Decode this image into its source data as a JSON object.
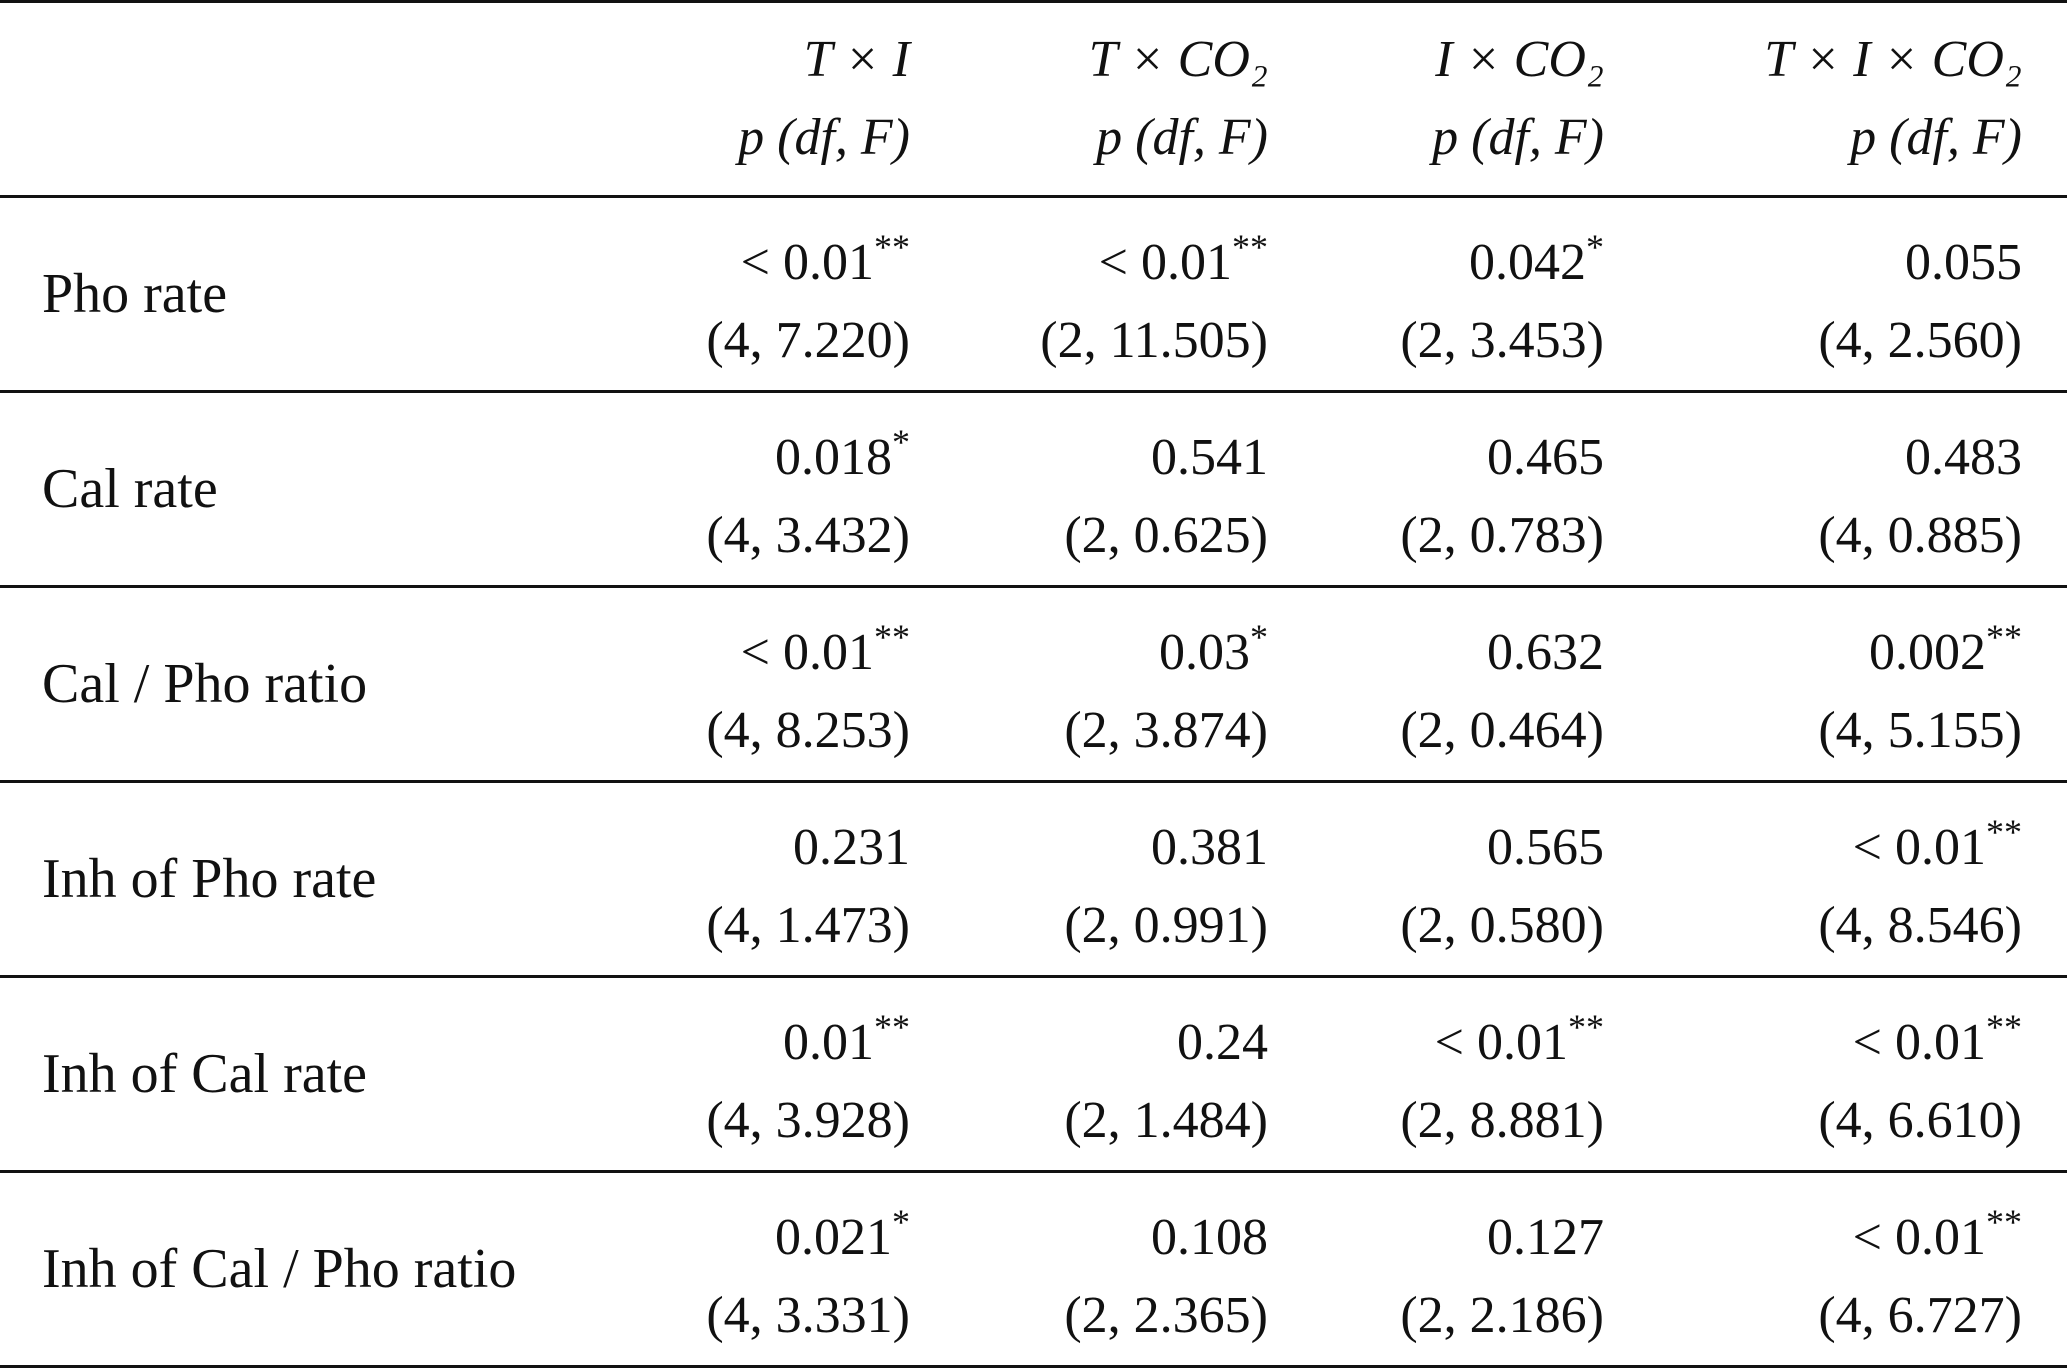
{
  "columns": [
    {
      "effect": "T × I",
      "stat": "p (df, F)"
    },
    {
      "effect": "T × CO₂",
      "stat": "p (df, F)"
    },
    {
      "effect": "I × CO₂",
      "stat": "p (df, F)"
    },
    {
      "effect": "T × I × CO₂",
      "stat": "p (df, F)"
    }
  ],
  "rows": [
    {
      "label": "Pho rate",
      "cells": [
        {
          "p": "< 0.01",
          "sig": "**",
          "stat": "(4, 7.220)"
        },
        {
          "p": "< 0.01",
          "sig": "**",
          "stat": "(2, 11.505)"
        },
        {
          "p": "0.042",
          "sig": "*",
          "stat": "(2, 3.453)"
        },
        {
          "p": "0.055",
          "sig": "",
          "stat": "(4, 2.560)"
        }
      ]
    },
    {
      "label": "Cal rate",
      "cells": [
        {
          "p": "0.018",
          "sig": "*",
          "stat": "(4, 3.432)"
        },
        {
          "p": "0.541",
          "sig": "",
          "stat": "(2, 0.625)"
        },
        {
          "p": "0.465",
          "sig": "",
          "stat": "(2, 0.783)"
        },
        {
          "p": "0.483",
          "sig": "",
          "stat": "(4, 0.885)"
        }
      ]
    },
    {
      "label": "Cal / Pho ratio",
      "cells": [
        {
          "p": "< 0.01",
          "sig": "**",
          "stat": "(4, 8.253)"
        },
        {
          "p": "0.03",
          "sig": "*",
          "stat": "(2, 3.874)"
        },
        {
          "p": "0.632",
          "sig": "",
          "stat": "(2, 0.464)"
        },
        {
          "p": "0.002",
          "sig": "**",
          "stat": "(4, 5.155)"
        }
      ]
    },
    {
      "label": "Inh of Pho rate",
      "cells": [
        {
          "p": "0.231",
          "sig": "",
          "stat": "(4, 1.473)"
        },
        {
          "p": "0.381",
          "sig": "",
          "stat": "(2, 0.991)"
        },
        {
          "p": "0.565",
          "sig": "",
          "stat": "(2, 0.580)"
        },
        {
          "p": "< 0.01",
          "sig": "**",
          "stat": "(4, 8.546)"
        }
      ]
    },
    {
      "label": "Inh of Cal rate",
      "cells": [
        {
          "p": "0.01",
          "sig": "**",
          "stat": "(4, 3.928)"
        },
        {
          "p": "0.24",
          "sig": "",
          "stat": "(2, 1.484)"
        },
        {
          "p": "< 0.01",
          "sig": "**",
          "stat": "(2, 8.881)"
        },
        {
          "p": "< 0.01",
          "sig": "**",
          "stat": "(4, 6.610)"
        }
      ]
    },
    {
      "label": "Inh of Cal / Pho ratio",
      "cells": [
        {
          "p": "0.021",
          "sig": "*",
          "stat": "(4, 3.331)"
        },
        {
          "p": "0.108",
          "sig": "",
          "stat": "(2, 2.365)"
        },
        {
          "p": "0.127",
          "sig": "",
          "stat": "(2, 2.186)"
        },
        {
          "p": "< 0.01",
          "sig": "**",
          "stat": "(4, 6.727)"
        }
      ]
    }
  ]
}
